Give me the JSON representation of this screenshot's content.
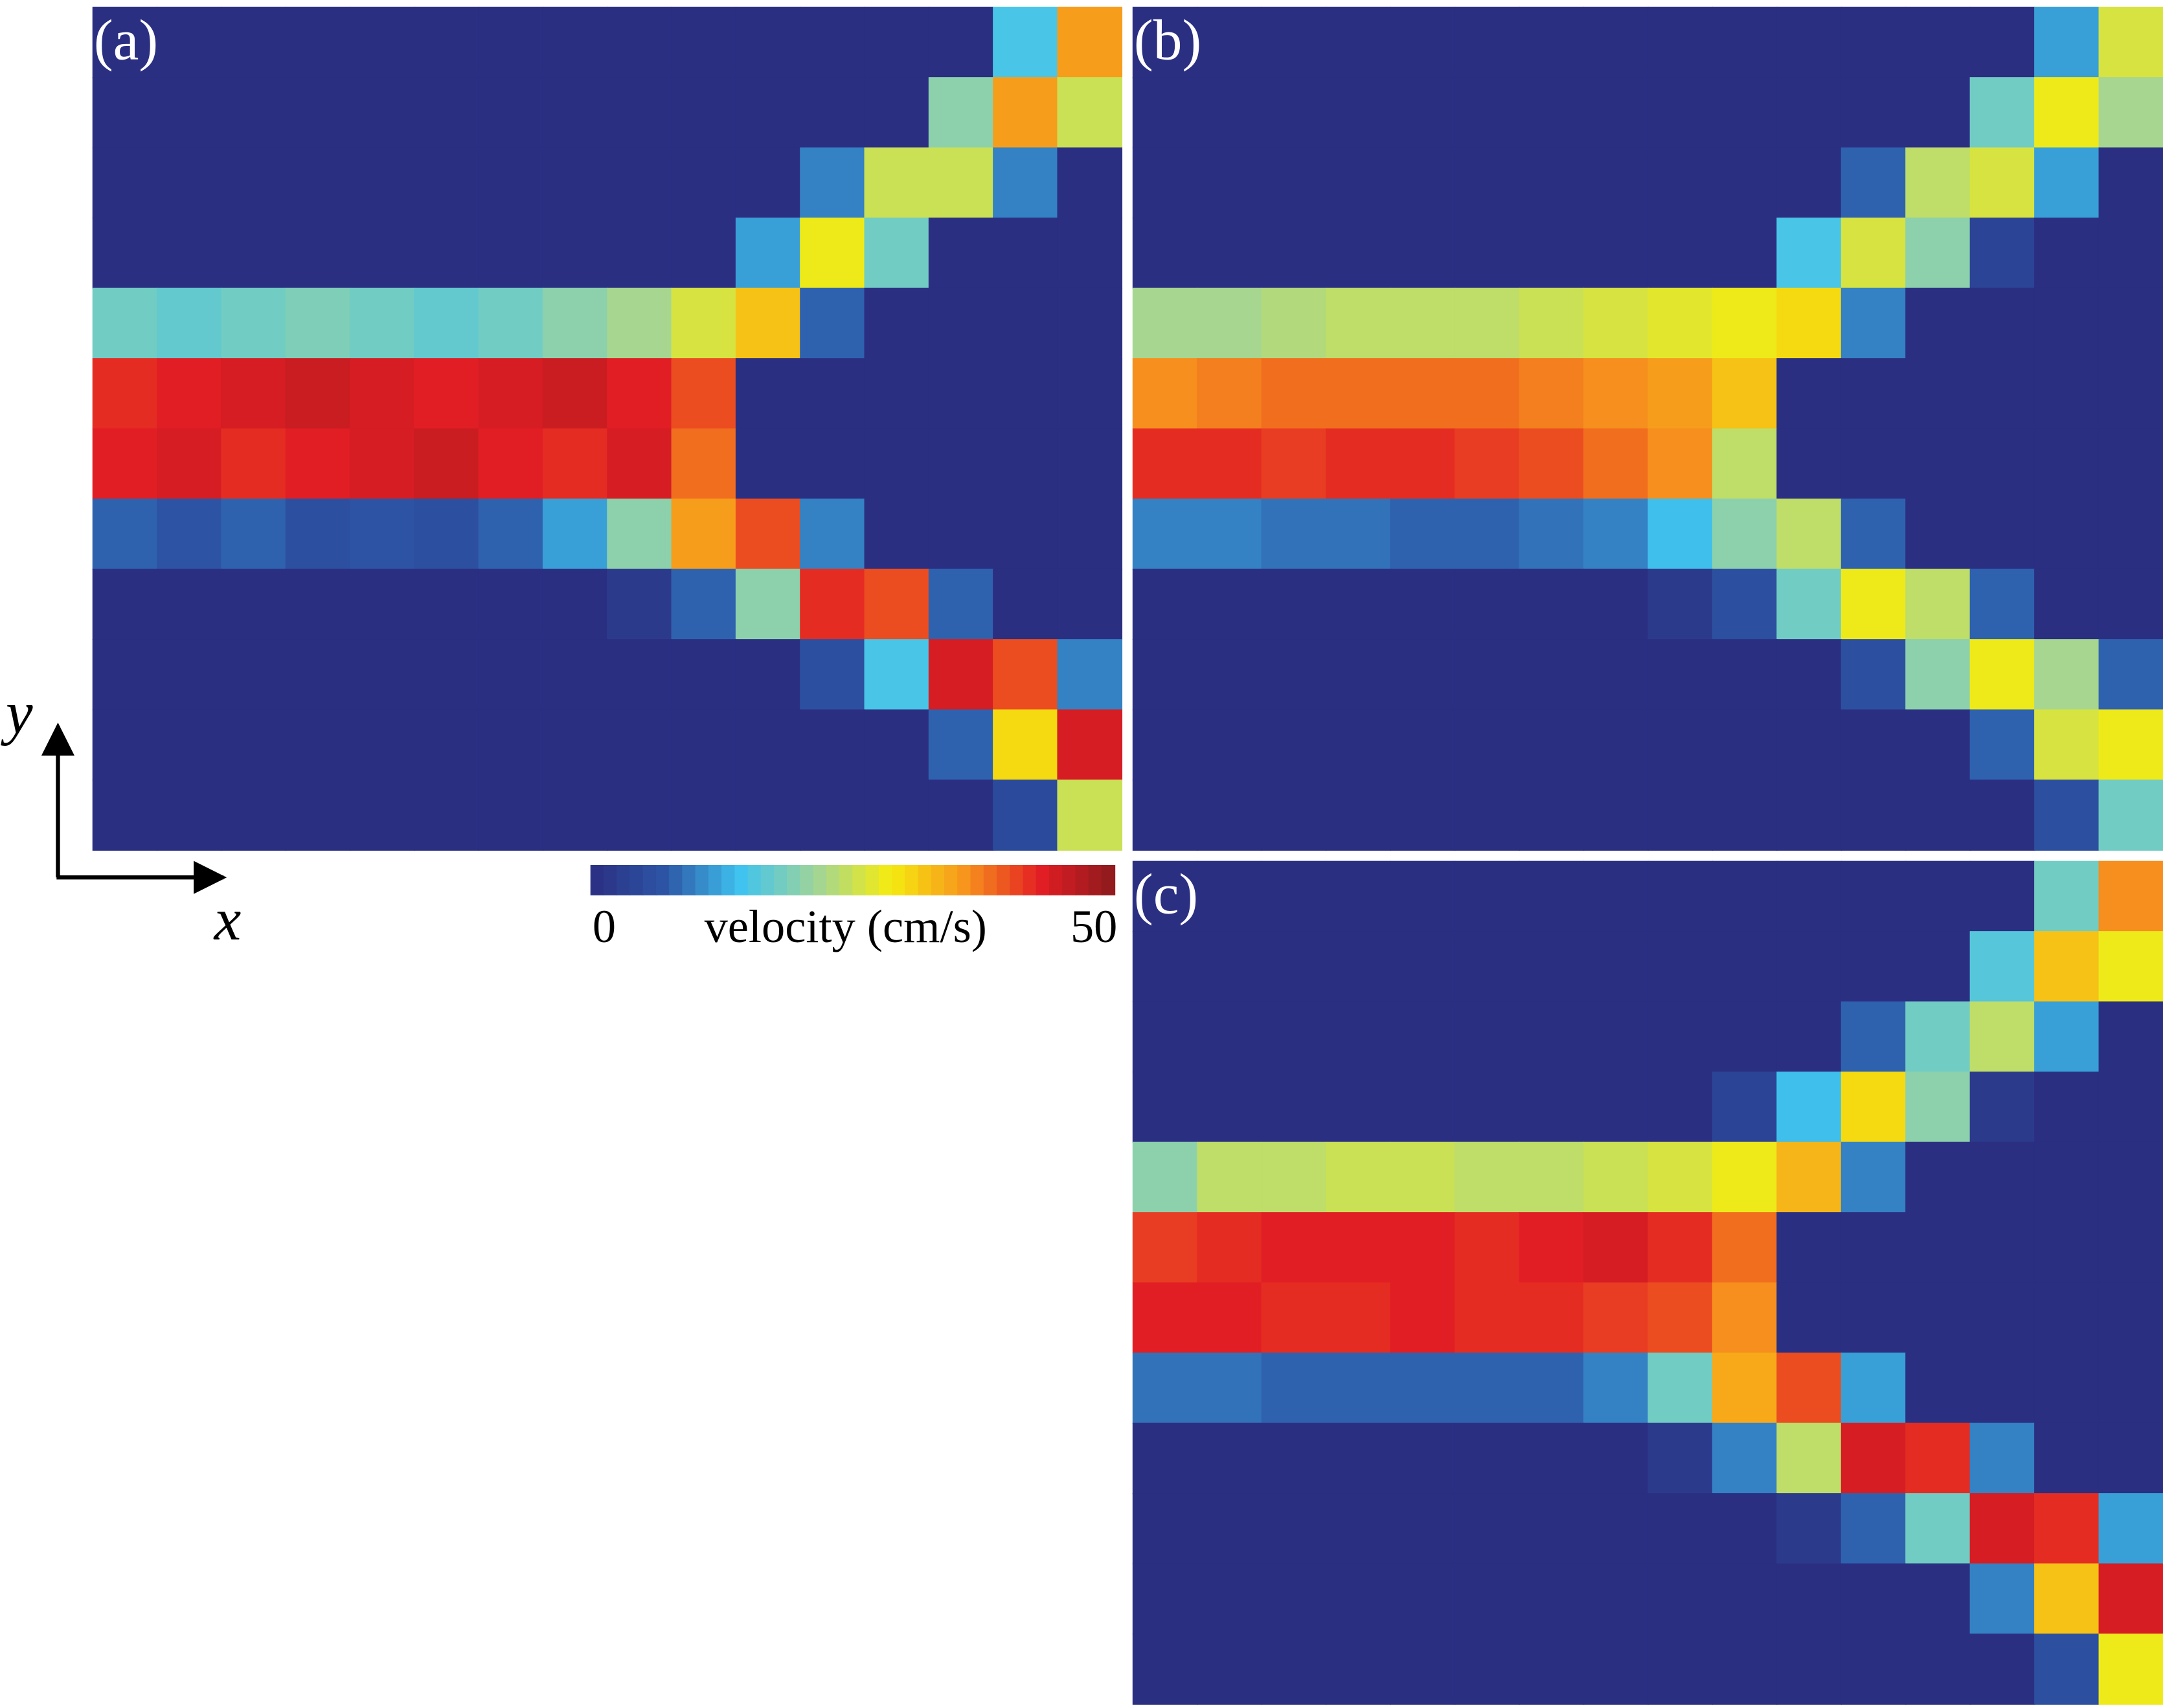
{
  "chart_data": [
    {
      "type": "heatmap",
      "title": "(a)",
      "xlabel": "x",
      "ylabel": "y",
      "colormap": [
        "#2b2f82",
        "#2d55a5",
        "#3fc3ef",
        "#9fd49b",
        "#f5ec0f",
        "#f7941d",
        "#e31e24",
        "#8b1a1c"
      ],
      "clim": [
        0,
        50
      ],
      "cticks": [
        0,
        50
      ],
      "colorbar_label": "velocity (cm/s)",
      "values": [
        [
          0,
          0,
          0,
          0,
          0,
          0,
          0,
          0,
          0,
          0,
          0,
          0,
          0,
          0,
          15,
          35
        ],
        [
          0,
          0,
          0,
          0,
          0,
          0,
          0,
          0,
          0,
          0,
          0,
          0,
          0,
          20,
          35,
          25
        ],
        [
          0,
          0,
          0,
          0,
          0,
          0,
          0,
          0,
          0,
          0,
          0,
          10,
          25,
          25,
          10,
          0
        ],
        [
          0,
          0,
          0,
          0,
          0,
          0,
          0,
          0,
          0,
          0,
          12,
          28,
          18,
          0,
          0,
          0
        ],
        [
          18,
          17,
          18,
          19,
          18,
          17,
          18,
          20,
          22,
          26,
          32,
          8,
          0,
          0,
          0,
          0
        ],
        [
          42,
          43,
          44,
          45,
          44,
          43,
          44,
          45,
          43,
          40,
          0,
          0,
          0,
          0,
          0,
          0
        ],
        [
          43,
          44,
          42,
          43,
          44,
          45,
          43,
          42,
          44,
          38,
          0,
          0,
          0,
          0,
          0,
          0
        ],
        [
          8,
          7,
          8,
          6,
          7,
          6,
          8,
          12,
          20,
          35,
          40,
          10,
          0,
          0,
          0,
          0
        ],
        [
          0,
          0,
          0,
          0,
          0,
          0,
          0,
          0,
          2,
          8,
          20,
          42,
          40,
          8,
          0,
          0
        ],
        [
          0,
          0,
          0,
          0,
          0,
          0,
          0,
          0,
          0,
          0,
          0,
          6,
          15,
          44,
          40,
          10
        ],
        [
          0,
          0,
          0,
          0,
          0,
          0,
          0,
          0,
          0,
          0,
          0,
          0,
          0,
          8,
          30,
          44
        ],
        [
          0,
          0,
          0,
          0,
          0,
          0,
          0,
          0,
          0,
          0,
          0,
          0,
          0,
          0,
          5,
          25
        ]
      ]
    },
    {
      "type": "heatmap",
      "title": "(b)",
      "values": [
        [
          0,
          0,
          0,
          0,
          0,
          0,
          0,
          0,
          0,
          0,
          0,
          0,
          0,
          0,
          12,
          26
        ],
        [
          0,
          0,
          0,
          0,
          0,
          0,
          0,
          0,
          0,
          0,
          0,
          0,
          0,
          18,
          28,
          22
        ],
        [
          0,
          0,
          0,
          0,
          0,
          0,
          0,
          0,
          0,
          0,
          0,
          8,
          24,
          26,
          12,
          0
        ],
        [
          0,
          0,
          0,
          0,
          0,
          0,
          0,
          0,
          0,
          0,
          15,
          26,
          20,
          4,
          0,
          0
        ],
        [
          22,
          22,
          23,
          24,
          24,
          24,
          25,
          26,
          27,
          28,
          30,
          10,
          0,
          0,
          0,
          0
        ],
        [
          36,
          37,
          38,
          38,
          38,
          38,
          37,
          36,
          35,
          32,
          0,
          0,
          0,
          0,
          0,
          0
        ],
        [
          42,
          42,
          41,
          42,
          42,
          41,
          40,
          38,
          36,
          24,
          0,
          0,
          0,
          0,
          0,
          0
        ],
        [
          10,
          10,
          9,
          9,
          8,
          8,
          9,
          10,
          14,
          20,
          24,
          8,
          0,
          0,
          0,
          0
        ],
        [
          0,
          0,
          0,
          0,
          0,
          0,
          0,
          0,
          2,
          6,
          18,
          28,
          24,
          8,
          0,
          0
        ],
        [
          0,
          0,
          0,
          0,
          0,
          0,
          0,
          0,
          0,
          0,
          0,
          6,
          20,
          28,
          22,
          8
        ],
        [
          0,
          0,
          0,
          0,
          0,
          0,
          0,
          0,
          0,
          0,
          0,
          0,
          0,
          8,
          26,
          28
        ],
        [
          0,
          0,
          0,
          0,
          0,
          0,
          0,
          0,
          0,
          0,
          0,
          0,
          0,
          0,
          6,
          18
        ]
      ]
    },
    {
      "type": "heatmap",
      "title": "(c)",
      "values": [
        [
          0,
          0,
          0,
          0,
          0,
          0,
          0,
          0,
          0,
          0,
          0,
          0,
          0,
          0,
          18,
          36
        ],
        [
          0,
          0,
          0,
          0,
          0,
          0,
          0,
          0,
          0,
          0,
          0,
          0,
          0,
          16,
          32,
          28
        ],
        [
          0,
          0,
          0,
          0,
          0,
          0,
          0,
          0,
          0,
          0,
          0,
          8,
          18,
          24,
          12,
          0
        ],
        [
          0,
          0,
          0,
          0,
          0,
          0,
          0,
          0,
          0,
          4,
          14,
          30,
          20,
          2,
          0,
          0
        ],
        [
          20,
          24,
          24,
          25,
          25,
          24,
          24,
          25,
          26,
          28,
          33,
          10,
          0,
          0,
          0,
          0
        ],
        [
          41,
          42,
          43,
          43,
          43,
          42,
          43,
          44,
          42,
          38,
          0,
          0,
          0,
          0,
          0,
          0
        ],
        [
          43,
          43,
          42,
          42,
          43,
          42,
          42,
          41,
          40,
          36,
          0,
          0,
          0,
          0,
          0,
          0
        ],
        [
          9,
          9,
          8,
          8,
          8,
          8,
          8,
          10,
          18,
          34,
          40,
          12,
          0,
          0,
          0,
          0
        ],
        [
          0,
          0,
          0,
          0,
          0,
          0,
          0,
          0,
          2,
          10,
          24,
          44,
          42,
          10,
          0,
          0
        ],
        [
          0,
          0,
          0,
          0,
          0,
          0,
          0,
          0,
          0,
          0,
          2,
          8,
          18,
          44,
          42,
          12
        ],
        [
          0,
          0,
          0,
          0,
          0,
          0,
          0,
          0,
          0,
          0,
          0,
          0,
          0,
          10,
          32,
          44
        ],
        [
          0,
          0,
          0,
          0,
          0,
          0,
          0,
          0,
          0,
          0,
          0,
          0,
          0,
          0,
          6,
          28
        ]
      ]
    }
  ]
}
